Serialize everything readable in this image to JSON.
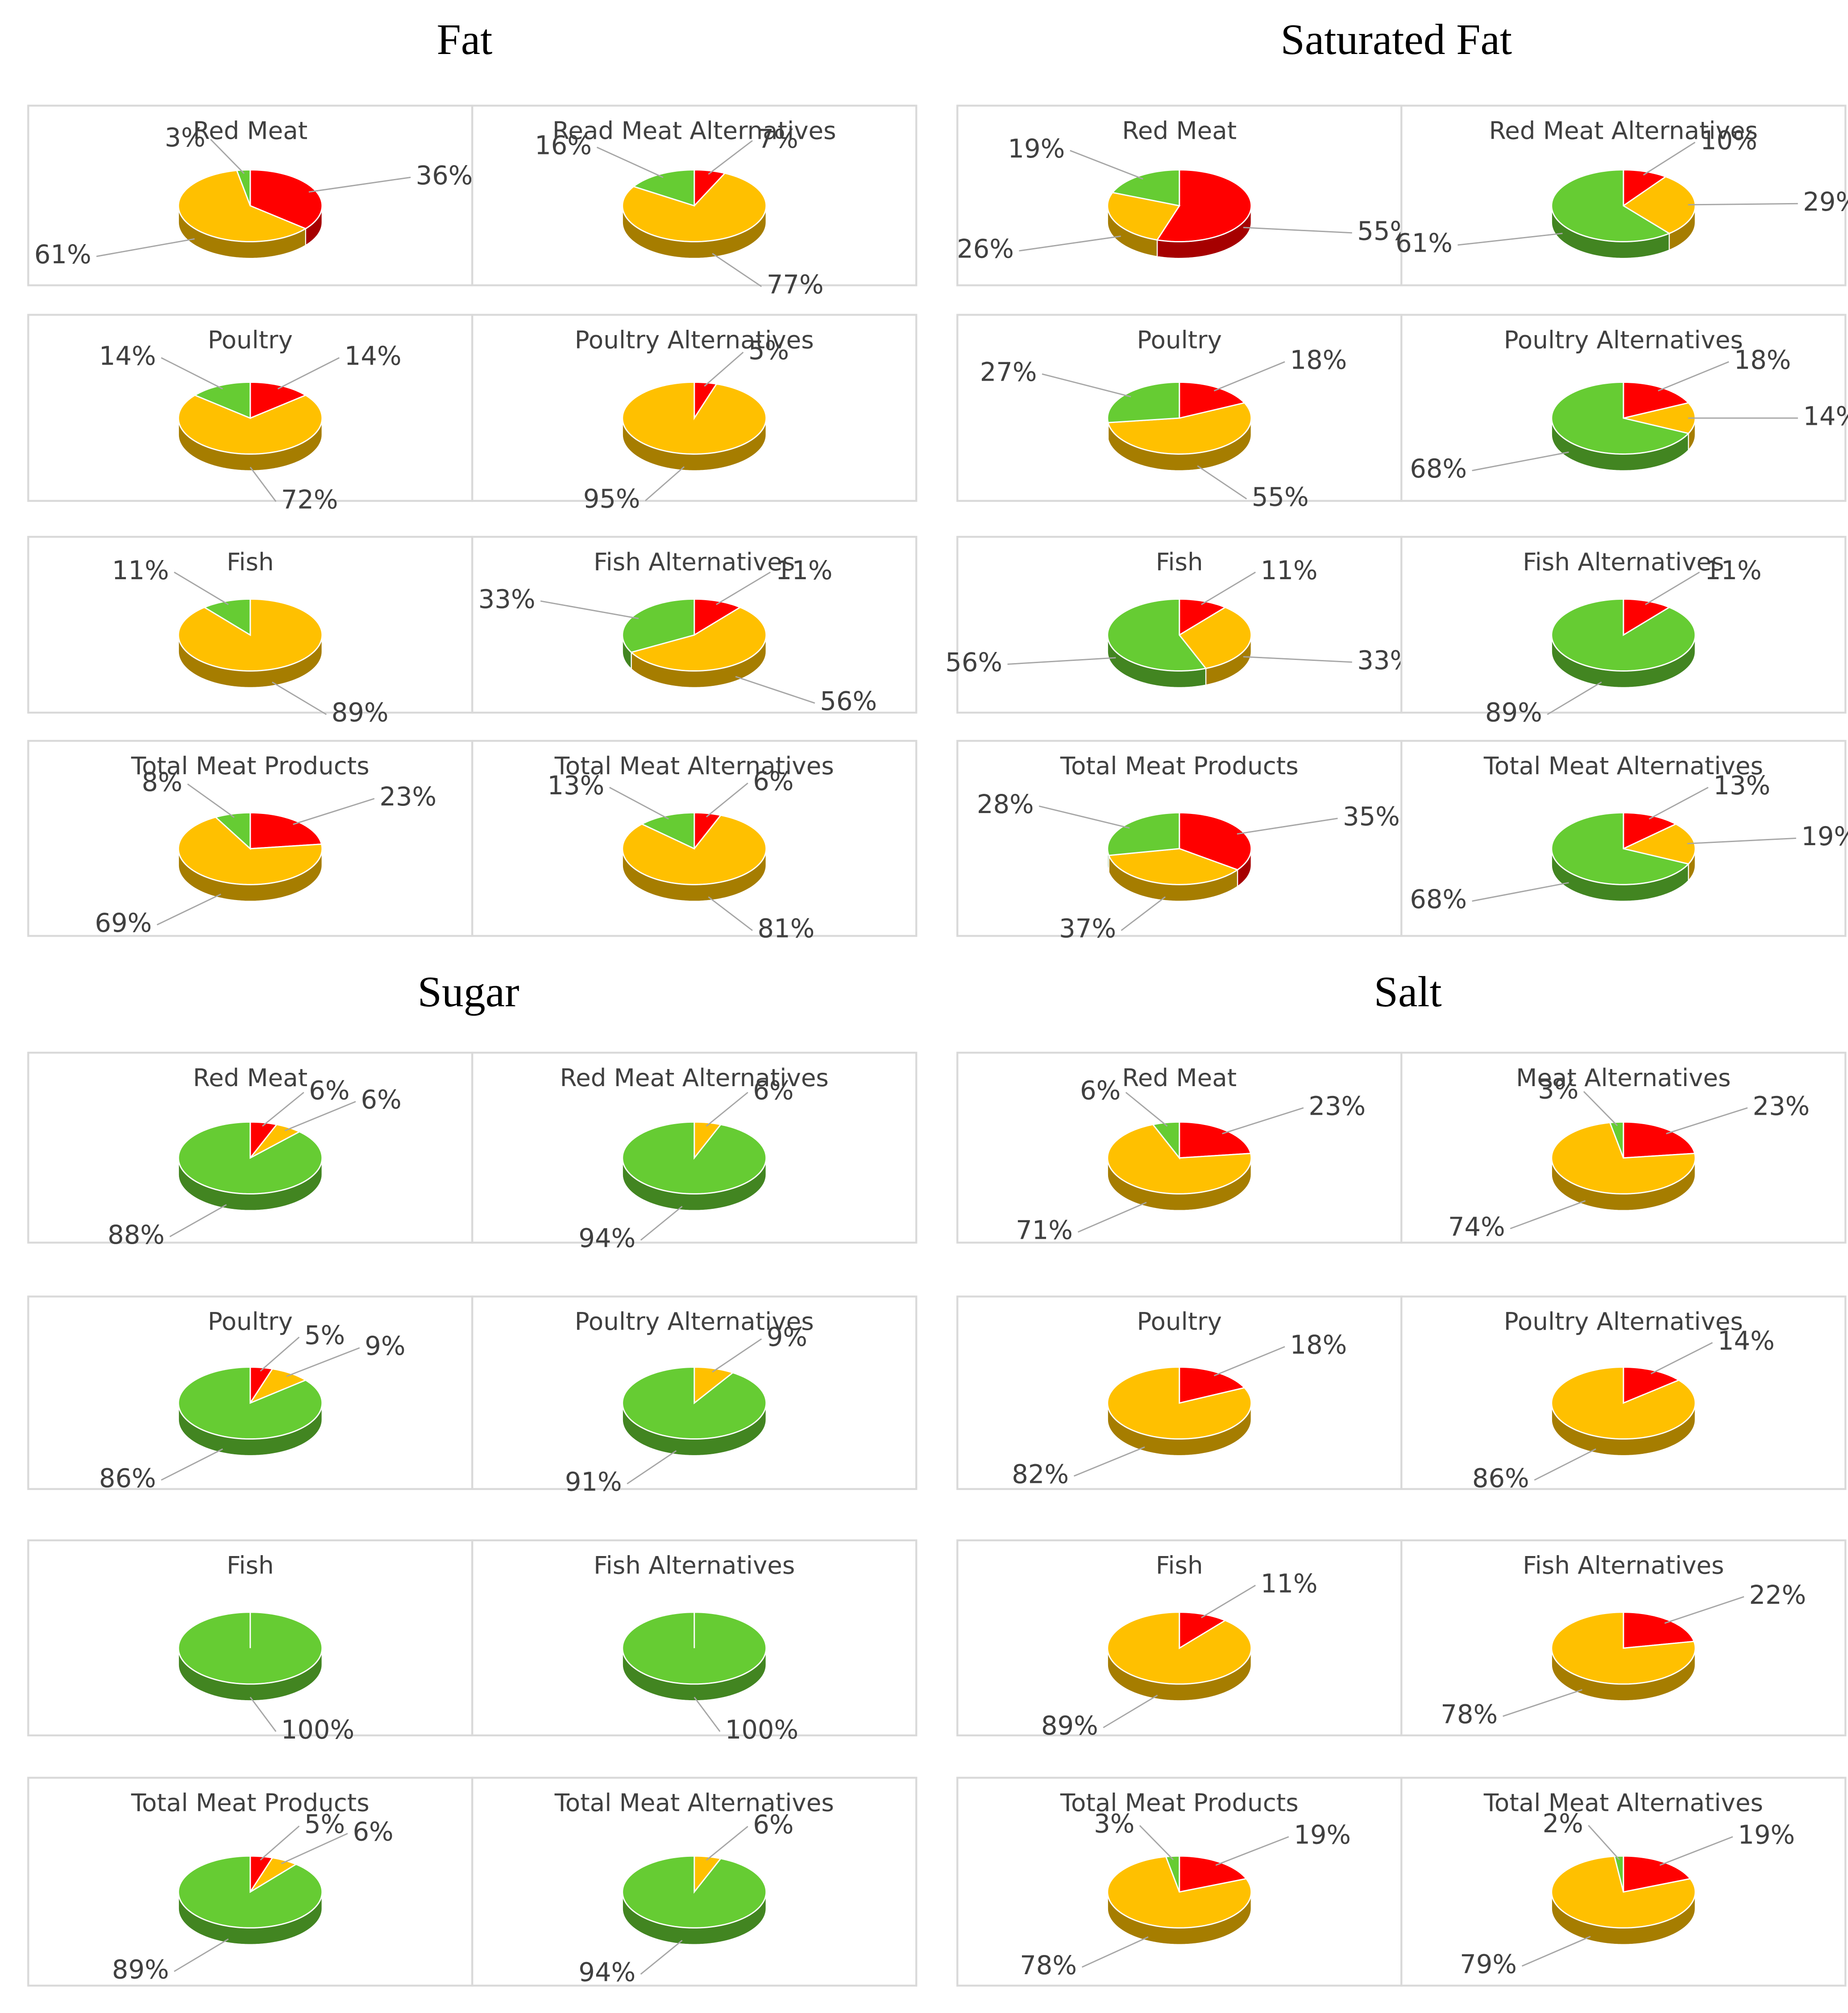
{
  "section_titles": [
    "Fat",
    "Saturated Fat",
    "Sugar",
    "Salt"
  ],
  "chart_data": [
    {
      "type": "pie",
      "title": "Red Meat",
      "values": [
        36,
        61,
        3
      ],
      "value_labels": [
        "36%",
        "61%",
        "3%"
      ],
      "colors": [
        "#ff0000",
        "#ffc000",
        "#66cc33"
      ]
    },
    {
      "type": "pie",
      "title": "Read Meat Alternatives",
      "values": [
        7,
        77,
        16
      ],
      "value_labels": [
        "7%",
        "77%",
        "16%"
      ],
      "colors": [
        "#ff0000",
        "#ffc000",
        "#66cc33"
      ]
    },
    {
      "type": "pie",
      "title": "Poultry",
      "values": [
        14,
        72,
        14
      ],
      "value_labels": [
        "14%",
        "72%",
        "14%"
      ],
      "colors": [
        "#ff0000",
        "#ffc000",
        "#66cc33"
      ]
    },
    {
      "type": "pie",
      "title": "Poultry Alternatives",
      "values": [
        5,
        95
      ],
      "value_labels": [
        "5%",
        "95%"
      ],
      "colors": [
        "#ff0000",
        "#ffc000"
      ]
    },
    {
      "type": "pie",
      "title": "Fish",
      "values": [
        89,
        11
      ],
      "value_labels": [
        "89%",
        "11%"
      ],
      "colors": [
        "#ffc000",
        "#66cc33"
      ]
    },
    {
      "type": "pie",
      "title": "Fish Alternatives",
      "values": [
        11,
        56,
        33
      ],
      "value_labels": [
        "11%",
        "56%",
        "33%"
      ],
      "colors": [
        "#ff0000",
        "#ffc000",
        "#66cc33"
      ]
    },
    {
      "type": "pie",
      "title": "Total Meat Products",
      "values": [
        23,
        69,
        8
      ],
      "value_labels": [
        "23%",
        "69%",
        "8%"
      ],
      "colors": [
        "#ff0000",
        "#ffc000",
        "#66cc33"
      ]
    },
    {
      "type": "pie",
      "title": "Total Meat Alternatives",
      "values": [
        6,
        81,
        13
      ],
      "value_labels": [
        "6%",
        "81%",
        "13%"
      ],
      "colors": [
        "#ff0000",
        "#ffc000",
        "#66cc33"
      ]
    },
    {
      "type": "pie",
      "title": "Red Meat",
      "values": [
        55,
        26,
        19
      ],
      "value_labels": [
        "55%",
        "26%",
        "19%"
      ],
      "colors": [
        "#ff0000",
        "#ffc000",
        "#66cc33"
      ]
    },
    {
      "type": "pie",
      "title": "Red Meat Alternatives",
      "values": [
        10,
        29,
        61
      ],
      "value_labels": [
        "10%",
        "29%",
        "61%"
      ],
      "colors": [
        "#ff0000",
        "#ffc000",
        "#66cc33"
      ]
    },
    {
      "type": "pie",
      "title": "Poultry",
      "values": [
        18,
        55,
        27
      ],
      "value_labels": [
        "18%",
        "55%",
        "27%"
      ],
      "colors": [
        "#ff0000",
        "#ffc000",
        "#66cc33"
      ]
    },
    {
      "type": "pie",
      "title": "Poultry Alternatives",
      "values": [
        18,
        14,
        68
      ],
      "value_labels": [
        "18%",
        "14%",
        "68%"
      ],
      "colors": [
        "#ff0000",
        "#ffc000",
        "#66cc33"
      ]
    },
    {
      "type": "pie",
      "title": "Fish",
      "values": [
        11,
        33,
        56
      ],
      "value_labels": [
        "11%",
        "33%",
        "56%"
      ],
      "colors": [
        "#ff0000",
        "#ffc000",
        "#66cc33"
      ]
    },
    {
      "type": "pie",
      "title": "Fish Alternatives",
      "values": [
        11,
        89
      ],
      "value_labels": [
        "11%",
        "89%"
      ],
      "colors": [
        "#ff0000",
        "#66cc33"
      ]
    },
    {
      "type": "pie",
      "title": "Total Meat Products",
      "values": [
        35,
        37,
        28
      ],
      "value_labels": [
        "35%",
        "37%",
        "28%"
      ],
      "colors": [
        "#ff0000",
        "#ffc000",
        "#66cc33"
      ]
    },
    {
      "type": "pie",
      "title": "Total Meat Alternatives",
      "values": [
        13,
        19,
        68
      ],
      "value_labels": [
        "13%",
        "19%",
        "68%"
      ],
      "colors": [
        "#ff0000",
        "#ffc000",
        "#66cc33"
      ]
    },
    {
      "type": "pie",
      "title": "Red Meat",
      "values": [
        6,
        6,
        88
      ],
      "value_labels": [
        "6%",
        "6%",
        "88%"
      ],
      "colors": [
        "#ff0000",
        "#ffc000",
        "#66cc33"
      ]
    },
    {
      "type": "pie",
      "title": "Red Meat Alternatives",
      "values": [
        6,
        94
      ],
      "value_labels": [
        "6%",
        "94%"
      ],
      "colors": [
        "#ffc000",
        "#66cc33"
      ]
    },
    {
      "type": "pie",
      "title": "Poultry",
      "values": [
        5,
        9,
        86
      ],
      "value_labels": [
        "5%",
        "9%",
        "86%"
      ],
      "colors": [
        "#ff0000",
        "#ffc000",
        "#66cc33"
      ]
    },
    {
      "type": "pie",
      "title": "Poultry Alternatives",
      "values": [
        9,
        91
      ],
      "value_labels": [
        "9%",
        "91%"
      ],
      "colors": [
        "#ffc000",
        "#66cc33"
      ]
    },
    {
      "type": "pie",
      "title": "Fish",
      "values": [
        100
      ],
      "value_labels": [
        "100%"
      ],
      "colors": [
        "#66cc33"
      ]
    },
    {
      "type": "pie",
      "title": "Fish Alternatives",
      "values": [
        100
      ],
      "value_labels": [
        "100%"
      ],
      "colors": [
        "#66cc33"
      ]
    },
    {
      "type": "pie",
      "title": "Total Meat Products",
      "values": [
        5,
        6,
        89
      ],
      "value_labels": [
        "5%",
        "6%",
        "89%"
      ],
      "colors": [
        "#ff0000",
        "#ffc000",
        "#66cc33"
      ]
    },
    {
      "type": "pie",
      "title": "Total Meat Alternatives",
      "values": [
        6,
        94
      ],
      "value_labels": [
        "6%",
        "94%"
      ],
      "colors": [
        "#ffc000",
        "#66cc33"
      ]
    },
    {
      "type": "pie",
      "title": "Red Meat",
      "values": [
        23,
        71,
        6
      ],
      "value_labels": [
        "23%",
        "71%",
        "6%"
      ],
      "colors": [
        "#ff0000",
        "#ffc000",
        "#66cc33"
      ]
    },
    {
      "type": "pie",
      "title": "Meat Alternatives",
      "values": [
        23,
        74,
        3
      ],
      "value_labels": [
        "23%",
        "74%",
        "3%"
      ],
      "colors": [
        "#ff0000",
        "#ffc000",
        "#66cc33"
      ]
    },
    {
      "type": "pie",
      "title": "Poultry",
      "values": [
        18,
        82
      ],
      "value_labels": [
        "18%",
        "82%"
      ],
      "colors": [
        "#ff0000",
        "#ffc000"
      ]
    },
    {
      "type": "pie",
      "title": "Poultry Alternatives",
      "values": [
        14,
        86
      ],
      "value_labels": [
        "14%",
        "86%"
      ],
      "colors": [
        "#ff0000",
        "#ffc000"
      ]
    },
    {
      "type": "pie",
      "title": "Fish",
      "values": [
        11,
        89
      ],
      "value_labels": [
        "11%",
        "89%"
      ],
      "colors": [
        "#ff0000",
        "#ffc000"
      ]
    },
    {
      "type": "pie",
      "title": "Fish Alternatives",
      "values": [
        22,
        78
      ],
      "value_labels": [
        "22%",
        "78%"
      ],
      "colors": [
        "#ff0000",
        "#ffc000"
      ]
    },
    {
      "type": "pie",
      "title": "Total Meat Products",
      "values": [
        19,
        78,
        3
      ],
      "value_labels": [
        "19%",
        "78%",
        "3%"
      ],
      "colors": [
        "#ff0000",
        "#ffc000",
        "#66cc33"
      ]
    },
    {
      "type": "pie",
      "title": "Total Meat Alternatives",
      "values": [
        19,
        79,
        2
      ],
      "value_labels": [
        "19%",
        "79%",
        "2%"
      ],
      "colors": [
        "#ff0000",
        "#ffc000",
        "#66cc33"
      ]
    }
  ]
}
